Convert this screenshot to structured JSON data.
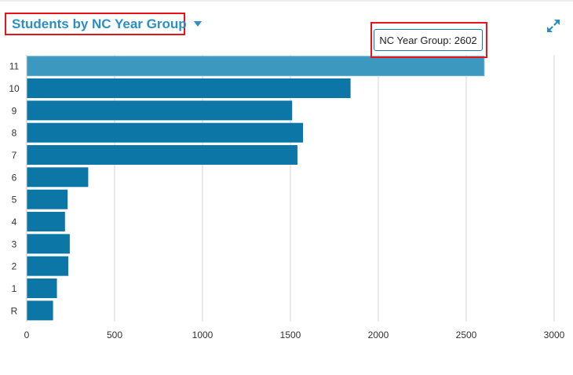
{
  "header": {
    "title": "Students by NC Year Group",
    "dropdown_icon": "caret-down-icon",
    "expand_icon": "expand-arrows-icon"
  },
  "tooltip": {
    "text": "NC Year Group: 2602"
  },
  "colors": {
    "bar": "#0c77a7",
    "bar_highlight": "#3d98bf",
    "title": "#2c8fc3",
    "highlight_border": "#e8141c",
    "gridline": "#d4d4d4"
  },
  "chart_data": {
    "type": "bar",
    "orientation": "horizontal",
    "categories": [
      "11",
      "10",
      "9",
      "8",
      "7",
      "6",
      "5",
      "4",
      "3",
      "2",
      "1",
      "R"
    ],
    "values": [
      2602,
      1842,
      1510,
      1572,
      1540,
      350,
      233,
      218,
      245,
      237,
      172,
      150
    ],
    "highlighted_category": "11",
    "xlim": [
      0,
      3000
    ],
    "xticks": [
      0,
      500,
      1000,
      1500,
      2000,
      2500,
      3000
    ],
    "grid": true,
    "legend": "none"
  }
}
